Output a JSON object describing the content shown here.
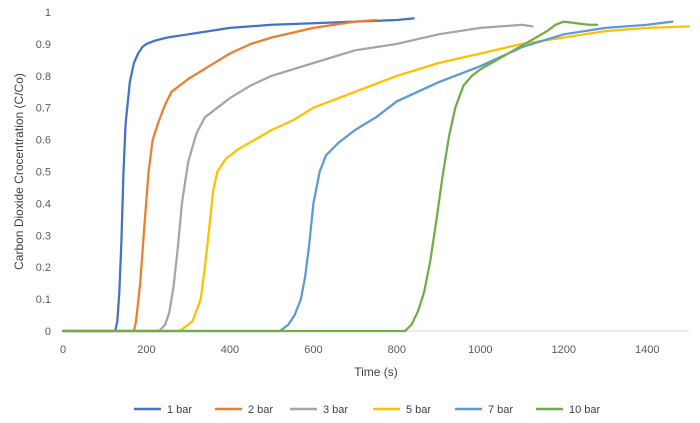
{
  "chart_data": {
    "type": "line",
    "title": "",
    "xlabel": "Time (s)",
    "ylabel": "Carbon Dioxide Crocentration (C/Co)",
    "xlim": [
      0,
      1500
    ],
    "ylim": [
      0,
      1
    ],
    "x_ticks": [
      0,
      200,
      400,
      600,
      800,
      1000,
      1200,
      1400
    ],
    "x_tick_labels": [
      "0",
      "200",
      "400",
      "600",
      "800",
      "1000",
      "1200",
      "1400"
    ],
    "y_ticks": [
      0,
      0.1,
      0.2,
      0.3,
      0.4,
      0.5,
      0.6,
      0.7,
      0.8,
      0.9,
      1
    ],
    "y_tick_labels": [
      "0",
      "0.1",
      "0.2",
      "0.3",
      "0.4",
      "0.5",
      "0.6",
      "0.7",
      "0.8",
      "0.9",
      "1"
    ],
    "grid": false,
    "legend_position": "bottom",
    "series": [
      {
        "name": "1 bar",
        "color": "#4472C4",
        "x": [
          0,
          125,
          130,
          135,
          140,
          145,
          150,
          160,
          170,
          180,
          190,
          200,
          220,
          250,
          300,
          350,
          400,
          500,
          600,
          700,
          800,
          840
        ],
        "y": [
          0,
          0,
          0.03,
          0.12,
          0.28,
          0.5,
          0.65,
          0.78,
          0.84,
          0.87,
          0.89,
          0.9,
          0.91,
          0.92,
          0.93,
          0.94,
          0.95,
          0.96,
          0.965,
          0.97,
          0.975,
          0.98
        ]
      },
      {
        "name": "2 bar",
        "color": "#ED7D31",
        "x": [
          0,
          170,
          175,
          185,
          195,
          205,
          215,
          230,
          245,
          260,
          280,
          300,
          350,
          400,
          450,
          500,
          600,
          700,
          750
        ],
        "y": [
          0,
          0,
          0.03,
          0.15,
          0.33,
          0.5,
          0.6,
          0.66,
          0.71,
          0.75,
          0.77,
          0.79,
          0.83,
          0.87,
          0.9,
          0.92,
          0.95,
          0.97,
          0.975
        ]
      },
      {
        "name": "3 bar",
        "color": "#A5A5A5",
        "x": [
          0,
          230,
          245,
          255,
          265,
          275,
          285,
          300,
          320,
          340,
          370,
          400,
          450,
          500,
          600,
          700,
          800,
          900,
          1000,
          1100,
          1125
        ],
        "y": [
          0,
          0,
          0.02,
          0.06,
          0.14,
          0.26,
          0.4,
          0.53,
          0.62,
          0.67,
          0.7,
          0.73,
          0.77,
          0.8,
          0.84,
          0.88,
          0.9,
          0.93,
          0.95,
          0.96,
          0.955
        ]
      },
      {
        "name": "5 bar",
        "color": "#FFC000",
        "x": [
          0,
          280,
          310,
          330,
          340,
          350,
          360,
          370,
          390,
          420,
          460,
          500,
          550,
          600,
          700,
          800,
          900,
          1000,
          1100,
          1200,
          1300,
          1400,
          1500
        ],
        "y": [
          0,
          0,
          0.03,
          0.1,
          0.2,
          0.32,
          0.44,
          0.5,
          0.54,
          0.57,
          0.6,
          0.63,
          0.66,
          0.7,
          0.75,
          0.8,
          0.84,
          0.87,
          0.9,
          0.92,
          0.94,
          0.95,
          0.955
        ]
      },
      {
        "name": "7 bar",
        "color": "#5B9BD5",
        "x": [
          0,
          520,
          540,
          555,
          570,
          580,
          590,
          600,
          615,
          630,
          660,
          700,
          750,
          800,
          900,
          1000,
          1100,
          1200,
          1300,
          1400,
          1460
        ],
        "y": [
          0,
          0,
          0.02,
          0.05,
          0.1,
          0.17,
          0.27,
          0.4,
          0.5,
          0.55,
          0.59,
          0.63,
          0.67,
          0.72,
          0.78,
          0.83,
          0.89,
          0.93,
          0.95,
          0.96,
          0.97
        ]
      },
      {
        "name": "10 bar",
        "color": "#70AD47",
        "x": [
          0,
          820,
          835,
          850,
          865,
          880,
          895,
          910,
          925,
          940,
          960,
          980,
          1000,
          1040,
          1080,
          1120,
          1160,
          1180,
          1200,
          1230,
          1260,
          1280
        ],
        "y": [
          0,
          0,
          0.02,
          0.06,
          0.12,
          0.22,
          0.35,
          0.49,
          0.61,
          0.7,
          0.77,
          0.8,
          0.82,
          0.85,
          0.88,
          0.91,
          0.94,
          0.96,
          0.97,
          0.965,
          0.96,
          0.96
        ]
      }
    ]
  }
}
